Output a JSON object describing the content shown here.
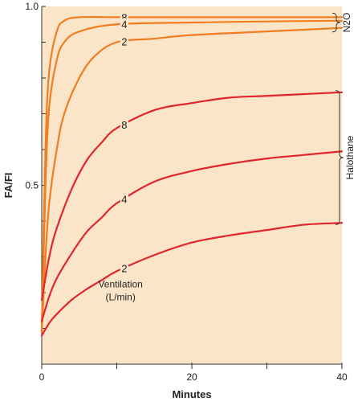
{
  "chart_data": {
    "type": "line",
    "xlabel": "Minutes",
    "ylabel": "FA/FI",
    "xlim": [
      0,
      40
    ],
    "ylim": [
      0,
      1.0
    ],
    "x_ticks": [
      0,
      20,
      40
    ],
    "y_ticks": [
      0.5,
      1.0
    ],
    "grid": false,
    "background": "#fbe5c9",
    "annotation": [
      "Ventilation",
      "(L/min)"
    ],
    "groups": [
      {
        "name": "N2O",
        "series_indices": [
          0,
          1,
          2
        ]
      },
      {
        "name": "Halothane",
        "series_indices": [
          3,
          4,
          5
        ]
      }
    ],
    "series": [
      {
        "label": "8",
        "color": "#f07d22",
        "x": [
          0,
          0.5,
          1,
          2,
          3,
          5,
          10,
          20,
          30,
          40
        ],
        "y": [
          0.09,
          0.6,
          0.82,
          0.93,
          0.96,
          0.97,
          0.97,
          0.97,
          0.97,
          0.97
        ]
      },
      {
        "label": "4",
        "color": "#f07d22",
        "x": [
          0,
          0.5,
          1,
          2,
          3,
          5,
          10,
          20,
          30,
          40
        ],
        "y": [
          0.09,
          0.5,
          0.72,
          0.85,
          0.9,
          0.93,
          0.95,
          0.955,
          0.958,
          0.96
        ]
      },
      {
        "label": "2",
        "color": "#f07d22",
        "x": [
          0,
          0.5,
          1,
          2,
          3,
          5,
          7,
          10,
          15,
          20,
          30,
          40
        ],
        "y": [
          0.09,
          0.3,
          0.45,
          0.6,
          0.7,
          0.8,
          0.86,
          0.9,
          0.91,
          0.92,
          0.93,
          0.94
        ]
      },
      {
        "label": "8",
        "color": "#e0262c",
        "x": [
          0,
          1,
          2,
          4,
          6,
          8,
          10,
          15,
          20,
          25,
          30,
          35,
          40
        ],
        "y": [
          0.18,
          0.3,
          0.38,
          0.49,
          0.57,
          0.62,
          0.66,
          0.71,
          0.73,
          0.745,
          0.75,
          0.755,
          0.76
        ]
      },
      {
        "label": "4",
        "color": "#e0262c",
        "x": [
          0,
          1,
          2,
          4,
          6,
          8,
          10,
          15,
          20,
          25,
          30,
          35,
          40
        ],
        "y": [
          0.12,
          0.19,
          0.24,
          0.31,
          0.37,
          0.41,
          0.45,
          0.51,
          0.54,
          0.56,
          0.575,
          0.585,
          0.595
        ]
      },
      {
        "label": "2",
        "color": "#e0262c",
        "x": [
          0,
          1,
          2,
          4,
          6,
          8,
          10,
          15,
          20,
          25,
          30,
          35,
          40
        ],
        "y": [
          0.08,
          0.115,
          0.14,
          0.18,
          0.21,
          0.235,
          0.26,
          0.305,
          0.34,
          0.36,
          0.375,
          0.39,
          0.395
        ]
      }
    ]
  }
}
